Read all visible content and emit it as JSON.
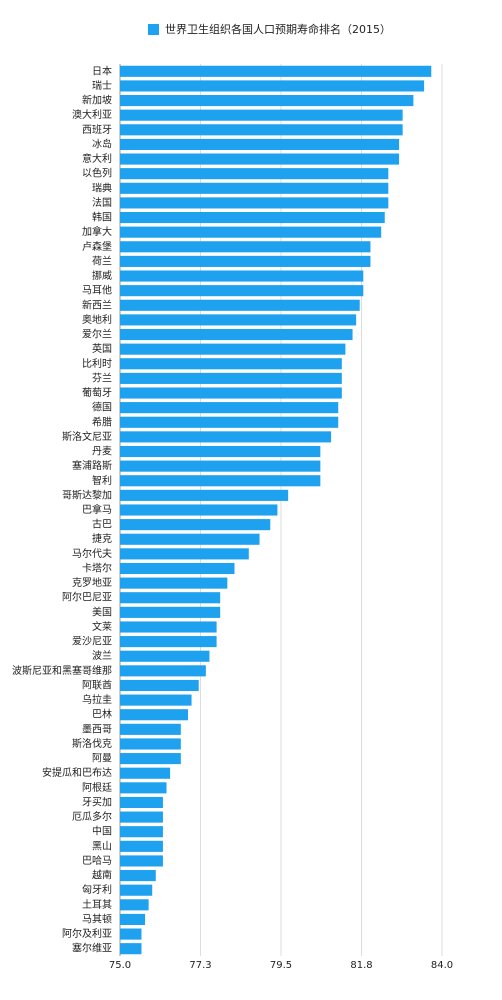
{
  "chart_data": {
    "type": "barh",
    "title": "世界卫生组织各国人口预期寿命排名（2015）",
    "color": "#1ea1ef",
    "grid": true,
    "categories": [
      "日本",
      "瑞士",
      "新加坡",
      "澳大利亚",
      "西班牙",
      "冰岛",
      "意大利",
      "以色列",
      "瑞典",
      "法国",
      "韩国",
      "加拿大",
      "卢森堡",
      "荷兰",
      "挪威",
      "马耳他",
      "新西兰",
      "奥地利",
      "爱尔兰",
      "英国",
      "比利时",
      "芬兰",
      "葡萄牙",
      "德国",
      "希腊",
      "斯洛文尼亚",
      "丹麦",
      "塞浦路斯",
      "智利",
      "哥斯达黎加",
      "巴拿马",
      "古巴",
      "捷克",
      "马尔代夫",
      "卡塔尔",
      "克罗地亚",
      "阿尔巴尼亚",
      "美国",
      "文莱",
      "爱沙尼亚",
      "波兰",
      "波斯尼亚和黑塞哥维那",
      "阿联酋",
      "乌拉圭",
      "巴林",
      "墨西哥",
      "斯洛伐克",
      "阿曼",
      "安提瓜和巴布达",
      "阿根廷",
      "牙买加",
      "厄瓜多尔",
      "中国",
      "黑山",
      "巴哈马",
      "越南",
      "匈牙利",
      "土耳其",
      "马其顿",
      "阿尔及利亚",
      "塞尔维亚"
    ],
    "values": [
      83.7,
      83.5,
      83.2,
      82.9,
      82.9,
      82.8,
      82.8,
      82.5,
      82.5,
      82.5,
      82.4,
      82.3,
      82.0,
      82.0,
      81.8,
      81.8,
      81.7,
      81.6,
      81.5,
      81.3,
      81.2,
      81.2,
      81.2,
      81.1,
      81.1,
      80.9,
      80.6,
      80.6,
      80.6,
      79.7,
      79.4,
      79.2,
      78.9,
      78.6,
      78.2,
      78.0,
      77.8,
      77.8,
      77.7,
      77.7,
      77.5,
      77.4,
      77.2,
      77.0,
      76.9,
      76.7,
      76.7,
      76.7,
      76.4,
      76.3,
      76.2,
      76.2,
      76.2,
      76.2,
      76.2,
      76.0,
      75.9,
      75.8,
      75.7,
      75.6,
      75.6
    ],
    "xlim": [
      75.0,
      84.0
    ],
    "xticks": [
      {
        "value": 75.0,
        "label": "75.0"
      },
      {
        "value": 77.25,
        "label": "77.3"
      },
      {
        "value": 79.5,
        "label": "79.5"
      },
      {
        "value": 81.75,
        "label": "81.8"
      },
      {
        "value": 84.0,
        "label": "84.0"
      }
    ]
  }
}
